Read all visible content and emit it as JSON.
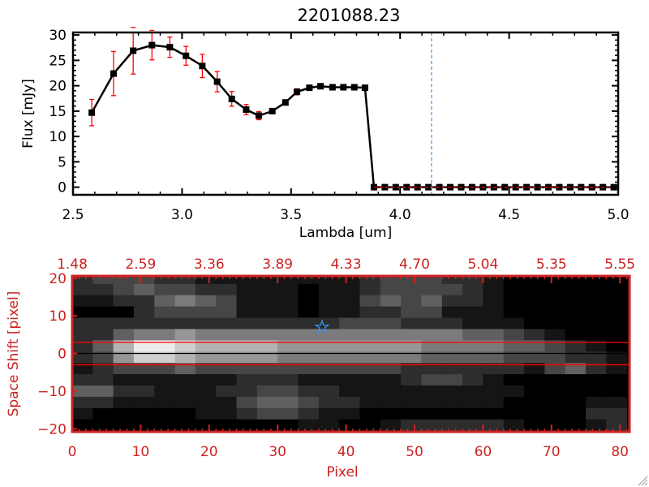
{
  "chart_data": [
    {
      "type": "line",
      "title": "2201088.23",
      "xlabel": "Lambda [um]",
      "ylabel": "Flux [mJy]",
      "xlim": [
        2.5,
        5.0
      ],
      "ylim": [
        -1.5,
        30.5
      ],
      "xticks": [
        "2.5",
        "3.0",
        "3.5",
        "4.0",
        "4.5",
        "5.0"
      ],
      "xtick_values": [
        2.5,
        3.0,
        3.5,
        4.0,
        4.5,
        5.0
      ],
      "yticks": [
        "0",
        "5",
        "10",
        "15",
        "20",
        "25",
        "30"
      ],
      "ytick_values": [
        0,
        5,
        10,
        15,
        20,
        25,
        30
      ],
      "series": [
        {
          "x": [
            2.586,
            2.686,
            2.776,
            2.862,
            2.944,
            3.018,
            3.093,
            3.161,
            3.228,
            3.294,
            3.352,
            3.414,
            3.474,
            3.527,
            3.584,
            3.635,
            3.69,
            3.74,
            3.79,
            3.839,
            3.88,
            3.93,
            3.98,
            4.03,
            4.08,
            4.13,
            4.18,
            4.23,
            4.28,
            4.33,
            4.38,
            4.43,
            4.48,
            4.53,
            4.58,
            4.63,
            4.68,
            4.73,
            4.78,
            4.83,
            4.88,
            4.93,
            4.98
          ],
          "y": [
            14.7,
            22.4,
            26.9,
            28.0,
            27.6,
            25.9,
            23.9,
            20.8,
            17.4,
            15.3,
            14.1,
            15.0,
            16.7,
            18.8,
            19.6,
            19.9,
            19.7,
            19.7,
            19.7,
            19.6,
            0,
            0,
            0,
            0,
            0,
            0,
            0,
            0,
            0,
            0,
            0,
            0,
            0,
            0,
            0,
            0,
            0,
            0,
            0,
            0,
            0,
            0,
            0
          ],
          "yerr": [
            2.6,
            4.35,
            4.6,
            2.9,
            2.0,
            1.85,
            2.3,
            2.0,
            1.45,
            1.0,
            0.8,
            0.45,
            0.5,
            0.6,
            0.4,
            0.4,
            0.4,
            0.4,
            0.4,
            0.4,
            0.1,
            0.1,
            0.1,
            0.1,
            0.1,
            0.1,
            0.1,
            0.1,
            0.1,
            0.1,
            0.1,
            0.1,
            0.1,
            0.1,
            0.1,
            0.1,
            0.1,
            0.1,
            0.1,
            0.1,
            0.1,
            0.1,
            0.1
          ],
          "line_color": "#000000",
          "marker": "square",
          "errorbar_color": "#ff0000"
        }
      ],
      "vline": {
        "x": 4.144,
        "color": "#3399ff",
        "style": "dashed"
      },
      "zero_line": {
        "y": 0,
        "color": "#ff0000",
        "style": "dashed",
        "xfrom": 3.88
      }
    },
    {
      "type": "heatmap",
      "xlabel": "Pixel",
      "ylabel": "Space Shift [pixel]",
      "xlim": [
        0,
        81.4
      ],
      "ylim": [
        -20.8,
        20.6
      ],
      "xticks": [
        "0",
        "10",
        "20",
        "30",
        "40",
        "50",
        "60",
        "70",
        "80"
      ],
      "xtick_values": [
        0,
        10,
        20,
        30,
        40,
        50,
        60,
        70,
        80
      ],
      "top_xticks": [
        "1.48",
        "2.59",
        "3.36",
        "3.89",
        "4.33",
        "4.70",
        "5.04",
        "5.35",
        "5.55"
      ],
      "yticks": [
        "20",
        "10",
        "0",
        "-10",
        "-20"
      ],
      "ytick_values": [
        20,
        10,
        0,
        -10,
        -20
      ],
      "axis_color": "#cc2222",
      "colormap": "grayscale",
      "cell_x_step": 3,
      "cell_y_values": [
        20,
        17,
        14,
        11,
        8,
        5,
        2,
        -1,
        -4,
        -7,
        -10,
        -13,
        -16,
        -19
      ],
      "intensity_rows": [
        "233322111111112333221000000",
        "223433221110112333321000000",
        "112245431110113434221000000",
        "000233331110112233111000000",
        "222222222222233322211100000",
        "224556555555555555544321000",
        "247998777766666665555443210",
        "236887666655555554444333221",
        "123334333333333322222213421",
        "221111112221111123321000000",
        "442211122332211111111100000",
        "221111113443221111111000011",
        "100000112332110000000000022",
        "000000000001100122222100012"
      ],
      "hlines": [
        {
          "y": 3,
          "color": "#ff0000"
        },
        {
          "y": 0,
          "color": "#000000"
        },
        {
          "y": -3,
          "color": "#ff0000"
        }
      ],
      "star": {
        "x": 36.5,
        "y": 7,
        "color": "#3399ff"
      }
    }
  ]
}
